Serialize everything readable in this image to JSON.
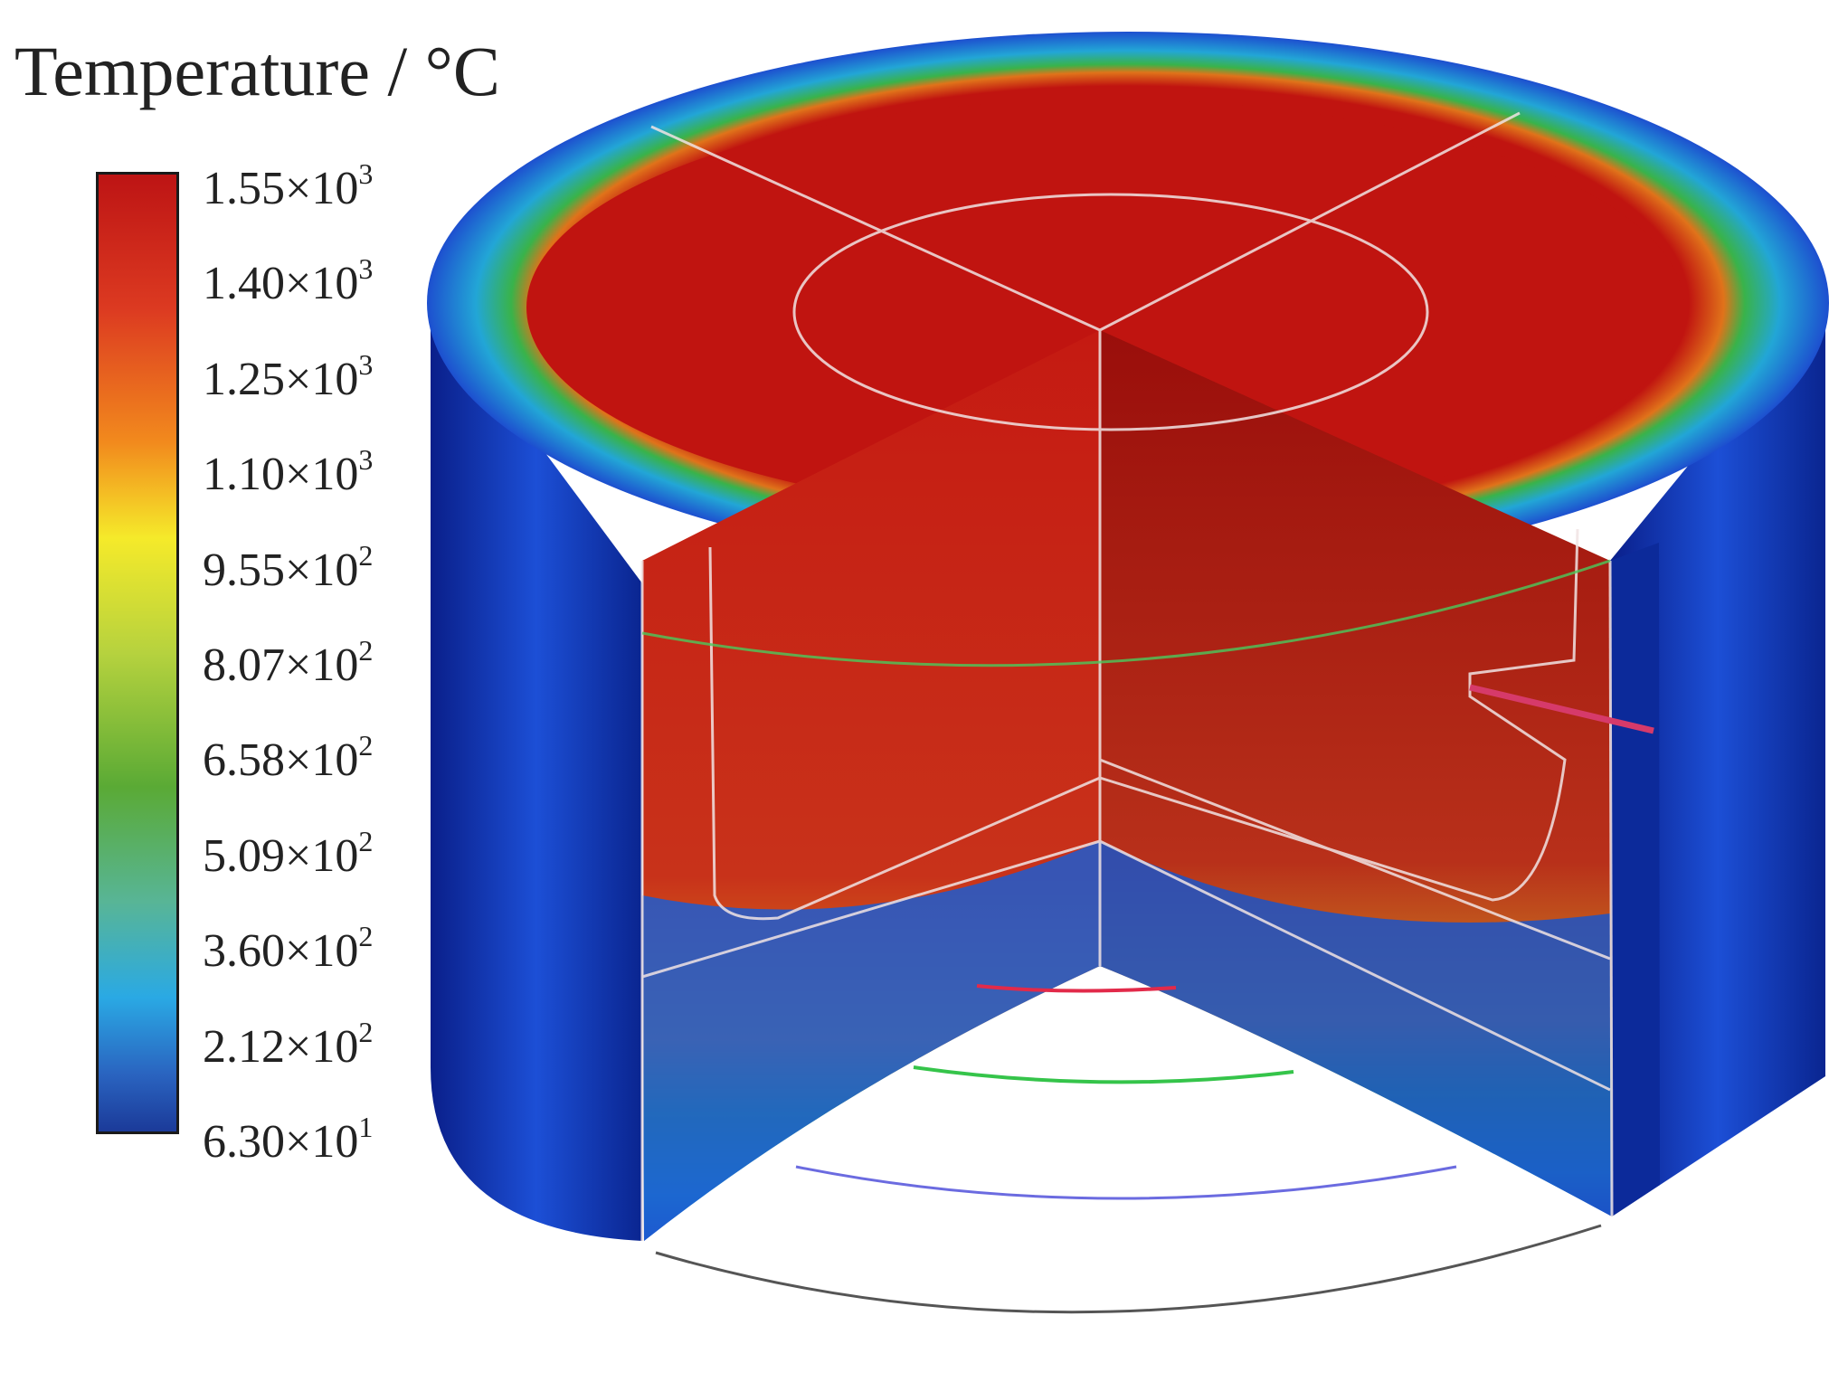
{
  "legend": {
    "title": "Temperature / °C",
    "ticks": [
      {
        "mantissa": "1.55×10",
        "exp": "3"
      },
      {
        "mantissa": "1.40×10",
        "exp": "3"
      },
      {
        "mantissa": "1.25×10",
        "exp": "3"
      },
      {
        "mantissa": "1.10×10",
        "exp": "3"
      },
      {
        "mantissa": "9.55×10",
        "exp": "2"
      },
      {
        "mantissa": "8.07×10",
        "exp": "2"
      },
      {
        "mantissa": "6.58×10",
        "exp": "2"
      },
      {
        "mantissa": "5.09×10",
        "exp": "2"
      },
      {
        "mantissa": "3.60×10",
        "exp": "2"
      },
      {
        "mantissa": "2.12×10",
        "exp": "2"
      },
      {
        "mantissa": "6.30×10",
        "exp": "1"
      }
    ],
    "colors": [
      "#bd1414",
      "#dc3a21",
      "#f28a1d",
      "#f5ea2a",
      "#b6d23e",
      "#5aaa35",
      "#58b596",
      "#2aa9e4",
      "#2a64c0",
      "#1b3a99"
    ]
  }
}
